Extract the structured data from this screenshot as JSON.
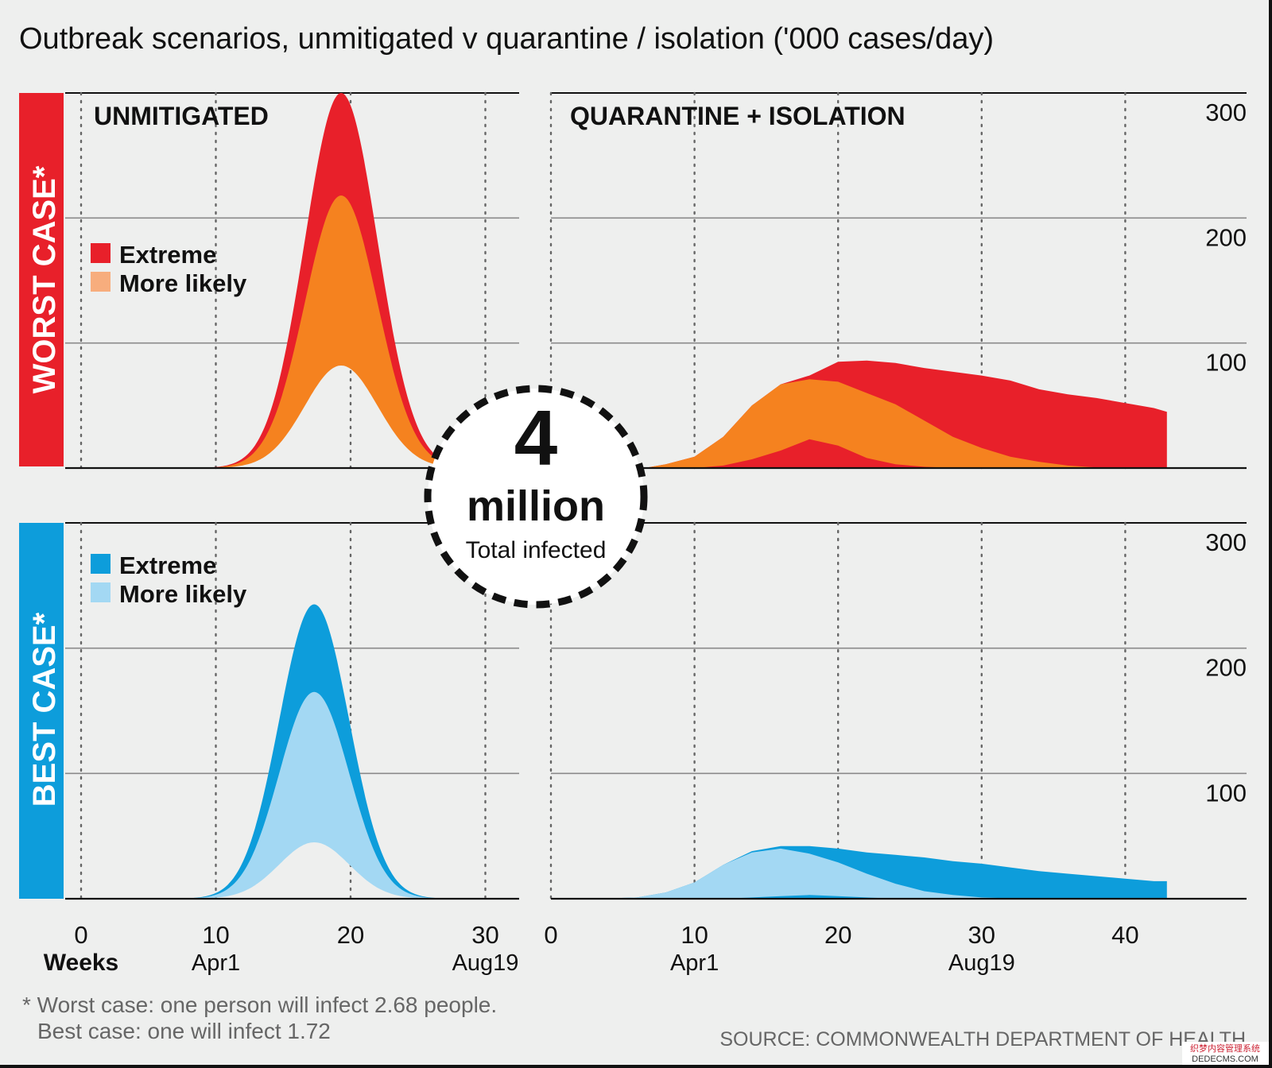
{
  "title": "Outbreak scenarios, unmitigated v quarantine / isolation ('000 cases/day)",
  "rows": [
    {
      "label": "WORST CASE*",
      "color": "#e8202a"
    },
    {
      "label": "BEST CASE*",
      "color": "#0d9ddb"
    }
  ],
  "panel_titles": {
    "left": "UNMITIGATED",
    "right": "QUARANTINE + ISOLATION"
  },
  "legend": {
    "worst": [
      {
        "label": "Extreme",
        "color": "#e8202a"
      },
      {
        "label": "More likely",
        "color": "#f7ad7d"
      }
    ],
    "best": [
      {
        "label": "Extreme",
        "color": "#0d9ddb"
      },
      {
        "label": "More likely",
        "color": "#a3d8f3"
      }
    ]
  },
  "callout": {
    "number": "4",
    "unit": "million",
    "caption": "Total infected"
  },
  "axis": {
    "xlabel": "Weeks",
    "left_ticks": [
      "0",
      "10",
      "20",
      "30"
    ],
    "right_ticks": [
      "0",
      "10",
      "20",
      "30",
      "40"
    ],
    "y_ticks": [
      "100",
      "200",
      "300"
    ],
    "date_labels_left": [
      {
        "week": 10,
        "label": "Apr1"
      },
      {
        "week": 30,
        "label": "Aug19"
      }
    ],
    "date_labels_right": [
      {
        "week": 10,
        "label": "Apr1"
      },
      {
        "week": 30,
        "label": "Aug19"
      }
    ]
  },
  "footnote": [
    "* Worst case: one person will infect 2.68 people.",
    "Best case: one will infect 1.72"
  ],
  "source": "SOURCE: COMMONWEALTH DEPARTMENT OF HEALTH",
  "watermark": [
    "织梦内容管理系统",
    "DEDECMS.COM"
  ],
  "chart_data": [
    {
      "type": "area",
      "scenario": "WORST CASE*",
      "panel": "UNMITIGATED",
      "xlabel": "Weeks",
      "xlim": [
        0,
        32
      ],
      "ylim": [
        0,
        300
      ],
      "grid": true,
      "legend_position": "left",
      "bands": [
        {
          "name": "Extreme",
          "color": "#e8202a",
          "peak_week": 19.3,
          "width": 2.7,
          "upper_peak": 300,
          "lower_peak": 107
        },
        {
          "name": "More likely",
          "color": "#f5821f",
          "peak_week": 19.3,
          "width": 2.7,
          "upper_peak": 218,
          "lower_peak": 82
        }
      ]
    },
    {
      "type": "area",
      "scenario": "WORST CASE*",
      "panel": "QUARANTINE + ISOLATION",
      "xlabel": "Weeks",
      "xlim": [
        0,
        48
      ],
      "ylim": [
        0,
        300
      ],
      "grid": true,
      "series": [
        {
          "name": "Extreme",
          "color": "#e8202a",
          "upper": [
            [
              6.5,
              0
            ],
            [
              8,
              3
            ],
            [
              10,
              9
            ],
            [
              12,
              25
            ],
            [
              14,
              50
            ],
            [
              16,
              67
            ],
            [
              18,
              74
            ],
            [
              20,
              85
            ],
            [
              22,
              86
            ],
            [
              24,
              84
            ],
            [
              26,
              80
            ],
            [
              28,
              77
            ],
            [
              30,
              74
            ],
            [
              32,
              70
            ],
            [
              34,
              63
            ],
            [
              36,
              59
            ],
            [
              38,
              56
            ],
            [
              40,
              52
            ],
            [
              42,
              48
            ],
            [
              42.9,
              45
            ],
            [
              42.9,
              0
            ]
          ],
          "lower": [
            [
              6.5,
              0
            ],
            [
              42.9,
              0
            ]
          ]
        },
        {
          "name": "More likely",
          "color": "#f5821f",
          "upper": [
            [
              6.5,
              0
            ],
            [
              8,
              3
            ],
            [
              10,
              9
            ],
            [
              12,
              25
            ],
            [
              14,
              50
            ],
            [
              16,
              67
            ],
            [
              18,
              71
            ],
            [
              20,
              69
            ],
            [
              22,
              60
            ],
            [
              24,
              51
            ],
            [
              26,
              38
            ],
            [
              28,
              25
            ],
            [
              30,
              16
            ],
            [
              32,
              9
            ],
            [
              34,
              5
            ],
            [
              36,
              2
            ],
            [
              38,
              0.5
            ],
            [
              38.5,
              0
            ]
          ],
          "lower": [
            [
              6.5,
              0
            ],
            [
              10,
              0
            ],
            [
              12,
              2
            ],
            [
              14,
              7
            ],
            [
              16,
              14
            ],
            [
              18,
              23
            ],
            [
              20,
              18
            ],
            [
              22,
              8
            ],
            [
              24,
              3
            ],
            [
              26,
              1
            ],
            [
              28,
              0
            ],
            [
              38.5,
              0
            ]
          ]
        }
      ]
    },
    {
      "type": "area",
      "scenario": "BEST CASE*",
      "panel": "UNMITIGATED",
      "xlabel": "Weeks",
      "xlim": [
        0,
        32
      ],
      "ylim": [
        0,
        300
      ],
      "grid": true,
      "legend_position": "left",
      "bands": [
        {
          "name": "Extreme",
          "color": "#0d9ddb",
          "peak_week": 17.3,
          "width": 2.6,
          "upper_peak": 235,
          "lower_peak": 60
        },
        {
          "name": "More likely",
          "color": "#a3d8f3",
          "peak_week": 17.3,
          "width": 2.6,
          "upper_peak": 165,
          "lower_peak": 45
        }
      ]
    },
    {
      "type": "area",
      "scenario": "BEST CASE*",
      "panel": "QUARANTINE + ISOLATION",
      "xlabel": "Weeks",
      "xlim": [
        0,
        48
      ],
      "ylim": [
        0,
        300
      ],
      "grid": true,
      "series": [
        {
          "name": "Extreme",
          "color": "#0d9ddb",
          "upper": [
            [
              3,
              0
            ],
            [
              6,
              1
            ],
            [
              8,
              5
            ],
            [
              10,
              13
            ],
            [
              12,
              27
            ],
            [
              14,
              38
            ],
            [
              16,
              42
            ],
            [
              18,
              42
            ],
            [
              20,
              40
            ],
            [
              22,
              37
            ],
            [
              24,
              35
            ],
            [
              26,
              33
            ],
            [
              28,
              30
            ],
            [
              30,
              28
            ],
            [
              32,
              25
            ],
            [
              34,
              22
            ],
            [
              36,
              20
            ],
            [
              38,
              18
            ],
            [
              40,
              16
            ],
            [
              42,
              14
            ],
            [
              42.9,
              14
            ],
            [
              42.9,
              0
            ]
          ],
          "lower": [
            [
              3,
              0
            ],
            [
              42.9,
              0
            ]
          ]
        },
        {
          "name": "More likely",
          "color": "#a3d8f3",
          "upper": [
            [
              3,
              0
            ],
            [
              6,
              1
            ],
            [
              8,
              5
            ],
            [
              10,
              13
            ],
            [
              12,
              27
            ],
            [
              14,
              37
            ],
            [
              16,
              40
            ],
            [
              18,
              36
            ],
            [
              20,
              29
            ],
            [
              22,
              20
            ],
            [
              24,
              12
            ],
            [
              26,
              6
            ],
            [
              28,
              3
            ],
            [
              30,
              1
            ],
            [
              32,
              0.3
            ],
            [
              34,
              0
            ]
          ],
          "lower": [
            [
              3,
              0
            ],
            [
              12,
              0
            ],
            [
              14,
              1
            ],
            [
              16,
              2
            ],
            [
              18,
              3
            ],
            [
              20,
              2
            ],
            [
              22,
              1
            ],
            [
              24,
              0
            ],
            [
              34,
              0
            ]
          ]
        }
      ]
    }
  ]
}
